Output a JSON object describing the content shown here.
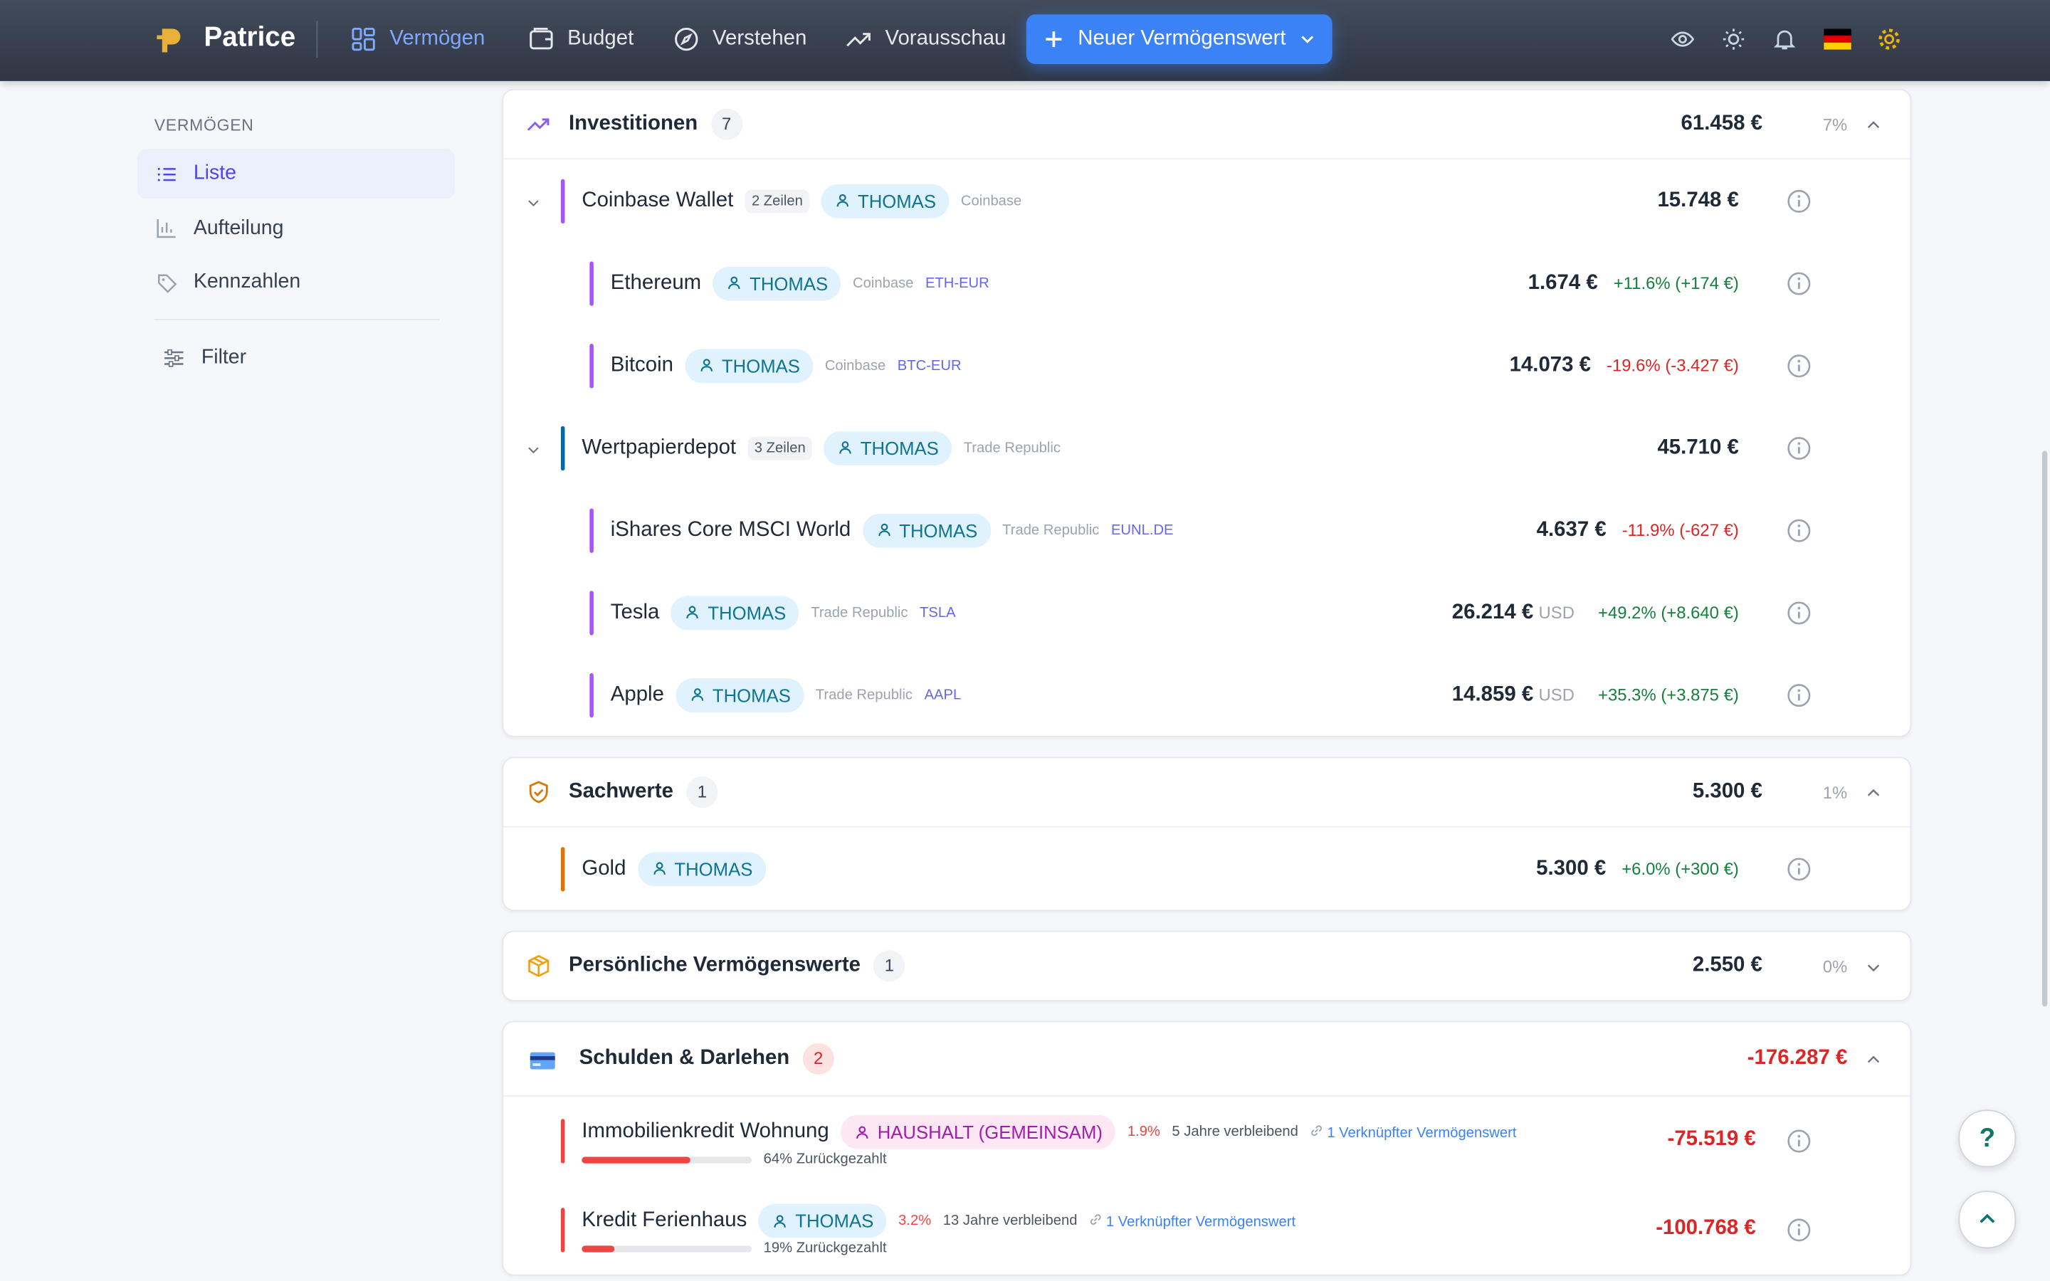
{
  "nav": {
    "brand": "Patrice",
    "items": [
      "Vermögen",
      "Budget",
      "Verstehen",
      "Vorausschau"
    ],
    "new_button": "Neuer Vermögenswert"
  },
  "sidebar": {
    "section": "VERMÖGEN",
    "items": [
      "Liste",
      "Aufteilung",
      "Kennzahlen"
    ],
    "filter": "Filter"
  },
  "groups": [
    {
      "title": "Investitionen",
      "count": 7,
      "total": "61.458 €",
      "share": "7%",
      "accounts": [
        {
          "name": "Coinbase Wallet",
          "rows": "2 Zeilen",
          "owner": "THOMAS",
          "institution": "Coinbase",
          "value": "15.748 €",
          "children": [
            {
              "name": "Ethereum",
              "owner": "THOMAS",
              "institution": "Coinbase",
              "ticker": "ETH-EUR",
              "value": "1.674 €",
              "change": "+11.6% (+174 €)"
            },
            {
              "name": "Bitcoin",
              "owner": "THOMAS",
              "institution": "Coinbase",
              "ticker": "BTC-EUR",
              "value": "14.073 €",
              "change": "-19.6% (-3.427 €)"
            }
          ]
        },
        {
          "name": "Wertpapierdepot",
          "rows": "3 Zeilen",
          "owner": "THOMAS",
          "institution": "Trade Republic",
          "value": "45.710 €",
          "children": [
            {
              "name": "iShares Core MSCI World",
              "owner": "THOMAS",
              "institution": "Trade Republic",
              "ticker": "EUNL.DE",
              "value": "4.637 €",
              "change": "-11.9% (-627 €)"
            },
            {
              "name": "Tesla",
              "owner": "THOMAS",
              "institution": "Trade Republic",
              "ticker": "TSLA",
              "value": "26.214 €",
              "currency": "USD",
              "change": "+49.2% (+8.640 €)"
            },
            {
              "name": "Apple",
              "owner": "THOMAS",
              "institution": "Trade Republic",
              "ticker": "AAPL",
              "value": "14.859 €",
              "currency": "USD",
              "change": "+35.3% (+3.875 €)"
            }
          ]
        }
      ]
    },
    {
      "title": "Sachwerte",
      "count": 1,
      "total": "5.300 €",
      "share": "1%",
      "accounts": [
        {
          "name": "Gold",
          "owner": "THOMAS",
          "value": "5.300 €",
          "change": "+6.0% (+300 €)"
        }
      ]
    },
    {
      "title": "Persönliche Vermögenswerte",
      "count": 1,
      "total": "2.550 €",
      "share": "0%"
    },
    {
      "title": "Schulden & Darlehen",
      "count": 2,
      "total": "-176.287 €",
      "debts": [
        {
          "name": "Immobilienkredit Wohnung",
          "owner": "HAUSHALT (GEMEINSAM)",
          "rate": "1.9%",
          "remaining": "5 Jahre verbleibend",
          "link": "1 Verknüpfter Vermögenswert",
          "value": "-75.519 €",
          "progress": 64,
          "progress_label": "64% Zurückgezahlt"
        },
        {
          "name": "Kredit Ferienhaus",
          "owner": "THOMAS",
          "rate": "3.2%",
          "remaining": "13 Jahre verbleibend",
          "link": "1 Verknüpfter Vermögenswert",
          "value": "-100.768 €",
          "progress": 19,
          "progress_label": "19% Zurückgezahlt"
        }
      ]
    }
  ],
  "help": "?"
}
